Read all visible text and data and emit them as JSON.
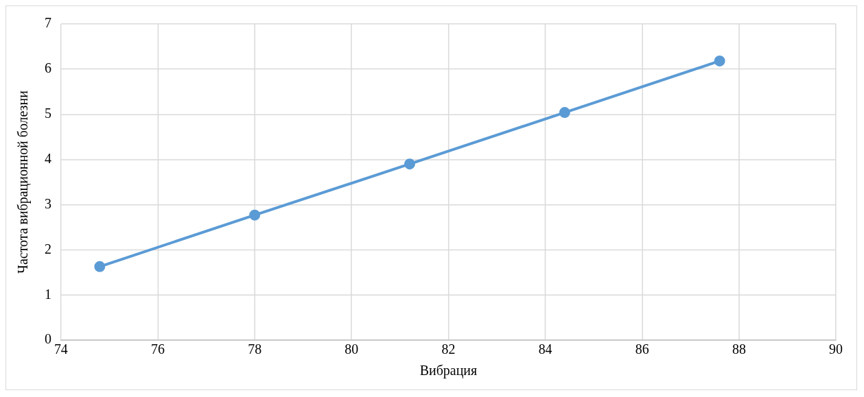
{
  "chart_data": {
    "type": "line",
    "xlabel": "Вибрация",
    "ylabel": "Частота вибрационной болезни",
    "x": [
      74.8,
      78.0,
      81.2,
      84.4,
      87.6
    ],
    "series": [
      {
        "color": "#5b9bd5",
        "values": [
          1.63,
          2.77,
          3.9,
          5.04,
          6.18
        ]
      }
    ],
    "xlim": [
      74,
      90
    ],
    "xticks": [
      74,
      76,
      78,
      80,
      82,
      84,
      86,
      88,
      90
    ],
    "ylim": [
      0,
      7
    ],
    "yticks": [
      0,
      1,
      2,
      3,
      4,
      5,
      6,
      7
    ],
    "grid": true,
    "legend": false,
    "marker": "circle",
    "line_style": "solid"
  }
}
